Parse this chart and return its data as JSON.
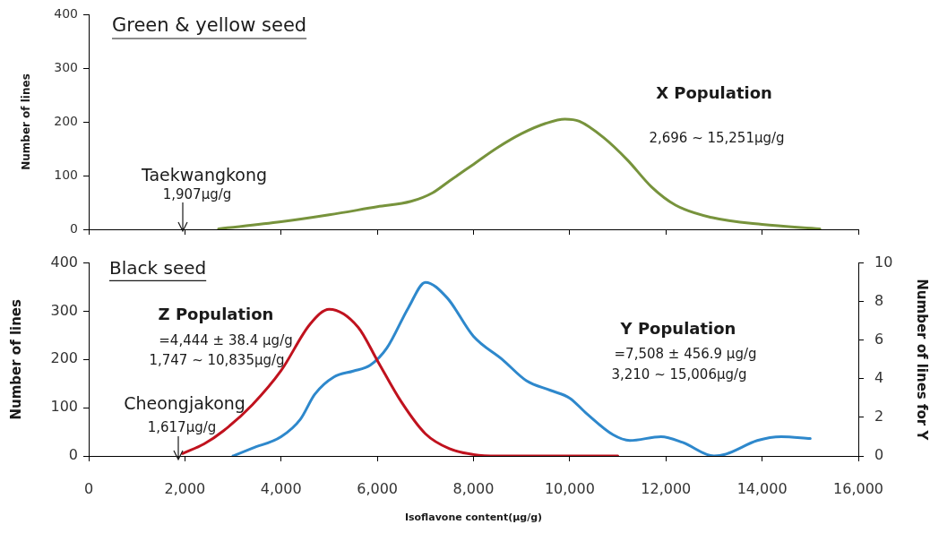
{
  "chart_data": [
    {
      "type": "line",
      "title": "Green & yellow seed",
      "ylabel": "Number of lines",
      "xlim": [
        0,
        16000
      ],
      "xticks": [
        0,
        2000,
        4000,
        6000,
        8000,
        10000,
        12000,
        14000,
        16000
      ],
      "ylim": [
        0,
        400
      ],
      "yticks": [
        0,
        100,
        200,
        300,
        400
      ],
      "tick_labels": "y",
      "marker": "none",
      "series": [
        {
          "color": "#77933c",
          "x": [
            2700,
            4000,
            5000,
            6000,
            6700,
            7150,
            7500,
            8000,
            8500,
            9000,
            9500,
            9900,
            10200,
            10700,
            11200,
            11700,
            12200,
            12950,
            14000,
            15200
          ],
          "values": [
            1,
            14,
            27,
            42,
            52,
            68,
            90,
            121,
            152,
            178,
            197,
            205,
            201,
            171,
            129,
            79,
            45,
            22,
            9,
            1
          ]
        }
      ],
      "annotations": [
        "X Population",
        "2,696 ~ 15,251μg/g",
        "Taekwangkong",
        "1,907μg/g"
      ]
    },
    {
      "type": "line",
      "title": "Black seed",
      "xlabel": "Isoflavone content(μg/g)",
      "ylabel": "Number of lines",
      "y2label": "Number of lines for Y",
      "xlim": [
        0,
        16000
      ],
      "xticks": [
        0,
        {
          "value": 2000,
          "label": "2,000"
        },
        {
          "value": 4000,
          "label": "4,000"
        },
        {
          "value": 6000,
          "label": "6,000"
        },
        {
          "value": 8000,
          "label": "8,000"
        },
        {
          "value": 10000,
          "label": "10,000"
        },
        {
          "value": 12000,
          "label": "12,000"
        },
        {
          "value": 14000,
          "label": "14,000"
        },
        {
          "value": 16000,
          "label": "16,000"
        }
      ],
      "ylim": [
        0,
        400
      ],
      "yticks": [
        0,
        100,
        200,
        300,
        400
      ],
      "y2lim": [
        0,
        10
      ],
      "y2ticks": [
        0,
        2,
        4,
        6,
        8,
        10
      ],
      "marker": "none",
      "series": [
        {
          "color": "#c0121e",
          "x": [
            1950,
            2400,
            2800,
            3400,
            4000,
            4600,
            5000,
            5600,
            6000,
            6500,
            7000,
            7500,
            8000,
            8500,
            9500,
            11000
          ],
          "values": [
            5,
            25,
            52,
            106,
            177,
            273,
            304,
            267,
            198,
            112,
            46,
            15,
            3,
            0,
            0,
            0
          ]
        },
        {
          "color": "#2e88cc",
          "axis": "y2",
          "x": [
            3000,
            3400,
            4000,
            4400,
            4700,
            5100,
            5500,
            5850,
            6200,
            6650,
            7000,
            7450,
            8000,
            8600,
            9100,
            9600,
            10000,
            10350,
            10900,
            11250,
            11900,
            12350,
            13000,
            13250,
            13900,
            14400,
            15000
          ],
          "values": [
            0,
            0.4,
            1,
            1.9,
            3.2,
            4.1,
            4.4,
            4.7,
            5.6,
            7.7,
            9,
            8.2,
            6.2,
            5,
            3.9,
            3.4,
            3,
            2.2,
            1.1,
            0.8,
            1,
            0.7,
            0,
            0.1,
            0.8,
            1,
            0.9
          ]
        }
      ],
      "annotations": [
        "Z Population",
        "=4,444 ± 38.4 μg/g",
        "1,747 ~ 10,835μg/g",
        "Cheongjakong",
        "1,617μg/g",
        "Y Population",
        "=7,508 ± 456.9 μg/g",
        "3,210 ~ 15,006μg/g"
      ]
    }
  ]
}
